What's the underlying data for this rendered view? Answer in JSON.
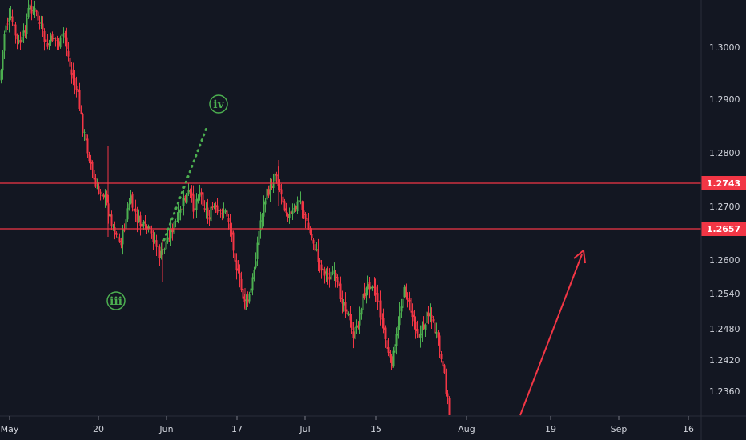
{
  "chart_data": {
    "type": "candlestick",
    "symbol_note": "",
    "y_axis": {
      "ticks": [
        "1.3000",
        "1.2900",
        "1.2800",
        "1.2700",
        "1.2600",
        "1.2540",
        "1.2480",
        "1.2420",
        "1.2360"
      ]
    },
    "x_axis": {
      "ticks": [
        "May",
        "20",
        "Jun",
        "17",
        "Jul",
        "15",
        "Aug",
        "19",
        "Sep",
        "16"
      ]
    },
    "levels": [
      {
        "label": "1.2743",
        "value": 1.2743,
        "color": "#f23645"
      },
      {
        "label": "1.2657",
        "value": 1.2657,
        "color": "#f23645"
      }
    ],
    "wave_labels": [
      {
        "text": "iv",
        "color": "#4caf50"
      },
      {
        "text": "iii",
        "color": "#4caf50"
      }
    ],
    "colors": {
      "background": "#131722",
      "up": "#4caf50",
      "down": "#f23645",
      "level": "#f23645",
      "projection_arrow": "#f23645",
      "wave_path": "#4caf50",
      "axis_text": "#d1d4dc"
    }
  }
}
